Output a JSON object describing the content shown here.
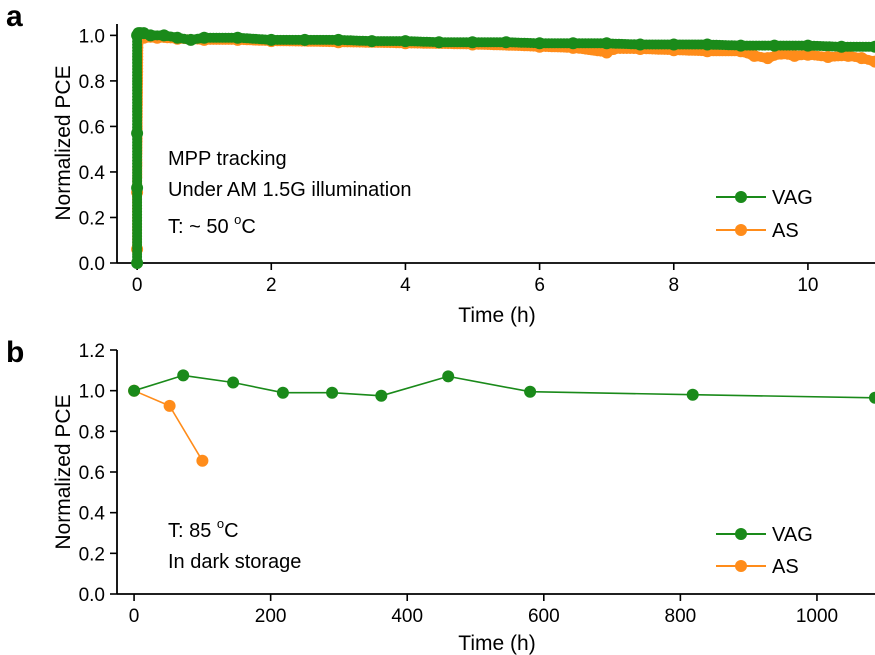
{
  "colors": {
    "VAG": "#1a8a1a",
    "AS": "#ff8c1a"
  },
  "chart_data": [
    {
      "panel": "a",
      "type": "scatter",
      "xlabel": "Time (h)",
      "ylabel": "Normalized PCE",
      "xlim": [
        -0.3,
        11
      ],
      "ylim": [
        0.0,
        1.05
      ],
      "xticks": [
        0,
        2,
        4,
        6,
        8,
        10
      ],
      "xtick_labels": [
        "0",
        "2",
        "4",
        "6",
        "8",
        "10"
      ],
      "yticks": [
        0.0,
        0.2,
        0.4,
        0.6,
        0.8,
        1.0
      ],
      "ytick_labels": [
        "0.0",
        "0.2",
        "0.4",
        "0.6",
        "0.8",
        "1.0"
      ],
      "annotations": [
        "MPP tracking",
        "Under AM 1.5G illumination",
        "T: ~ 50 °C"
      ],
      "legend": {
        "position": "lower-right",
        "entries": [
          "VAG",
          "AS"
        ]
      },
      "series": [
        {
          "name": "VAG",
          "x": [
            0,
            0,
            0,
            0,
            0.02,
            0.05,
            0.1,
            0.2,
            0.4,
            0.6,
            0.8,
            1.0,
            1.5,
            2.0,
            2.5,
            3.0,
            3.5,
            4.0,
            4.5,
            5.0,
            5.5,
            6.0,
            6.5,
            7.0,
            7.5,
            8.0,
            8.5,
            9.0,
            9.5,
            10.0,
            10.5,
            11.0
          ],
          "y": [
            0.0,
            0.33,
            0.57,
            1.0,
            1.01,
            1.01,
            1.01,
            1.0,
            1.0,
            0.99,
            0.98,
            0.99,
            0.99,
            0.98,
            0.98,
            0.98,
            0.975,
            0.975,
            0.97,
            0.97,
            0.97,
            0.965,
            0.965,
            0.965,
            0.96,
            0.96,
            0.96,
            0.955,
            0.955,
            0.955,
            0.95,
            0.95
          ]
        },
        {
          "name": "AS",
          "x": [
            0,
            0,
            0.02,
            0.05,
            0.1,
            0.3,
            0.6,
            1.0,
            1.5,
            2.0,
            3.0,
            4.0,
            5.0,
            6.0,
            6.5,
            7.0,
            7.1,
            7.5,
            8.0,
            8.5,
            9.0,
            9.2,
            9.4,
            9.6,
            9.8,
            10.0,
            10.3,
            10.6,
            10.8,
            11.0
          ],
          "y": [
            0.06,
            0.31,
            1.0,
            1.0,
            0.99,
            0.99,
            0.985,
            0.98,
            0.98,
            0.975,
            0.97,
            0.965,
            0.96,
            0.95,
            0.945,
            0.925,
            0.94,
            0.94,
            0.935,
            0.93,
            0.93,
            0.91,
            0.9,
            0.92,
            0.91,
            0.915,
            0.905,
            0.91,
            0.9,
            0.885
          ]
        }
      ]
    },
    {
      "panel": "b",
      "type": "line",
      "xlabel": "Time (h)",
      "ylabel": "Normalized PCE",
      "xlim": [
        -25,
        1085
      ],
      "ylim": [
        0.0,
        1.2
      ],
      "xticks": [
        0,
        200,
        400,
        600,
        800,
        1000
      ],
      "xtick_labels": [
        "0",
        "200",
        "400",
        "600",
        "800",
        "1000"
      ],
      "yticks": [
        0.0,
        0.2,
        0.4,
        0.6,
        0.8,
        1.0,
        1.2
      ],
      "ytick_labels": [
        "0.0",
        "0.2",
        "0.4",
        "0.6",
        "0.8",
        "1.0",
        "1.2"
      ],
      "annotations": [
        "T: 85 °C",
        "In dark storage"
      ],
      "legend": {
        "position": "lower-right",
        "entries": [
          "VAG",
          "AS"
        ]
      },
      "series": [
        {
          "name": "VAG",
          "x": [
            0,
            72,
            145,
            218,
            290,
            362,
            460,
            580,
            818,
            1085
          ],
          "y": [
            1.0,
            1.075,
            1.04,
            0.99,
            0.99,
            0.975,
            1.07,
            0.995,
            0.98,
            0.965
          ]
        },
        {
          "name": "AS",
          "x": [
            0,
            52,
            100
          ],
          "y": [
            1.0,
            0.925,
            0.655
          ]
        }
      ]
    }
  ]
}
